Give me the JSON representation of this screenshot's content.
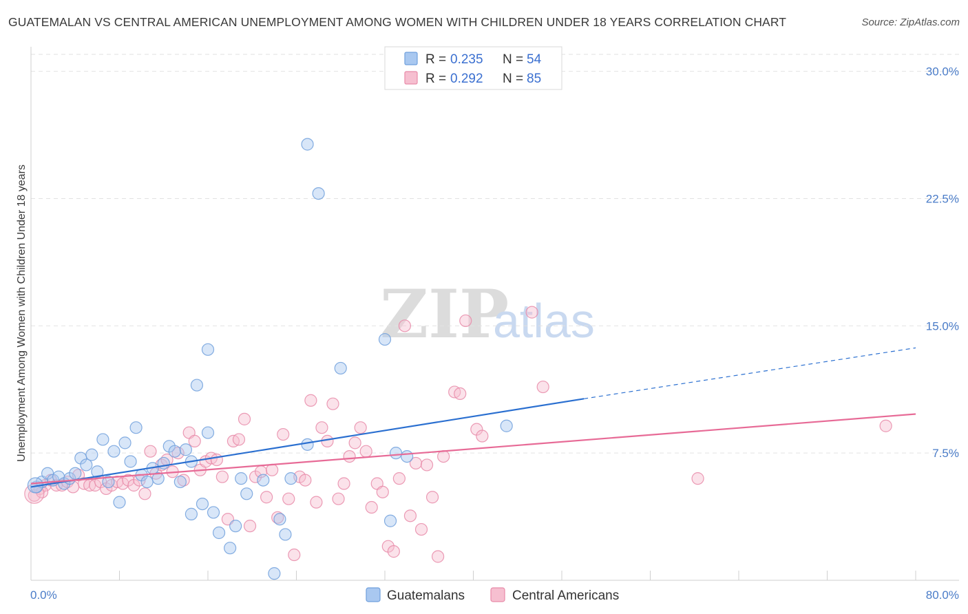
{
  "title": "GUATEMALAN VS CENTRAL AMERICAN UNEMPLOYMENT AMONG WOMEN WITH CHILDREN UNDER 18 YEARS CORRELATION CHART",
  "source": "Source: ZipAtlas.com",
  "watermark": {
    "zip": "ZIP",
    "atlas": "atlas"
  },
  "legend": {
    "r_label": "R =",
    "n_label": "N =",
    "series": [
      {
        "r": "0.235",
        "n": "54"
      },
      {
        "r": "0.292",
        "n": "85"
      }
    ]
  },
  "colors": {
    "guatemalans_fill": "#a9c8f0",
    "guatemalans_stroke": "#6f9fdc",
    "guatemalans_line": "#2a6fd0",
    "central_fill": "#f6bfd0",
    "central_stroke": "#e88aa8",
    "central_line": "#e76a96",
    "tick_text": "#4a7cc8"
  },
  "chart_data": {
    "type": "scatter",
    "xlabel": "",
    "ylabel": "Unemployment Among Women with Children Under 18 years",
    "xlim": [
      0,
      80
    ],
    "ylim": [
      0,
      31
    ],
    "x_tick_labels": [
      "0.0%",
      "80.0%"
    ],
    "y_ticks": [
      7.5,
      15.0,
      22.5,
      30.0
    ],
    "y_tick_labels": [
      "7.5%",
      "15.0%",
      "22.5%",
      "30.0%"
    ],
    "grid": true,
    "legend_position": "top-center",
    "series": [
      {
        "name": "Guatemalans",
        "trend": {
          "x": [
            0,
            50
          ],
          "y": [
            5.5,
            10.7
          ],
          "dashed_to": [
            80,
            13.7
          ]
        },
        "points": [
          [
            0.5,
            5.5
          ],
          [
            1.0,
            5.8
          ],
          [
            1.5,
            6.3
          ],
          [
            2.0,
            5.9
          ],
          [
            2.5,
            6.1
          ],
          [
            3.0,
            5.7
          ],
          [
            3.5,
            6.0
          ],
          [
            4.0,
            6.3
          ],
          [
            4.5,
            7.2
          ],
          [
            5.0,
            6.8
          ],
          [
            5.5,
            7.4
          ],
          [
            6.0,
            6.4
          ],
          [
            6.5,
            8.3
          ],
          [
            7.0,
            5.8
          ],
          [
            7.5,
            7.6
          ],
          [
            8.0,
            4.6
          ],
          [
            8.5,
            8.1
          ],
          [
            9.0,
            7.0
          ],
          [
            9.5,
            9.0
          ],
          [
            10.0,
            6.2
          ],
          [
            10.5,
            5.8
          ],
          [
            11.0,
            6.6
          ],
          [
            11.5,
            6.0
          ],
          [
            12.0,
            6.9
          ],
          [
            12.5,
            7.9
          ],
          [
            13.0,
            7.6
          ],
          [
            13.5,
            5.8
          ],
          [
            14.0,
            7.7
          ],
          [
            14.5,
            3.9
          ],
          [
            14.5,
            7.0
          ],
          [
            15.0,
            11.5
          ],
          [
            15.5,
            4.5
          ],
          [
            16.0,
            8.7
          ],
          [
            16.0,
            13.6
          ],
          [
            16.5,
            4.0
          ],
          [
            17.0,
            2.8
          ],
          [
            18.0,
            1.9
          ],
          [
            18.5,
            3.2
          ],
          [
            19.0,
            6.0
          ],
          [
            19.5,
            5.1
          ],
          [
            21.0,
            5.9
          ],
          [
            22.0,
            0.4
          ],
          [
            22.5,
            3.6
          ],
          [
            23.0,
            2.7
          ],
          [
            23.5,
            6.0
          ],
          [
            25.0,
            25.7
          ],
          [
            25.0,
            8.0
          ],
          [
            26.0,
            22.8
          ],
          [
            28.0,
            12.5
          ],
          [
            32.0,
            14.2
          ],
          [
            32.5,
            3.5
          ],
          [
            33.0,
            7.5
          ],
          [
            34.0,
            7.3
          ],
          [
            43.0,
            9.1
          ]
        ]
      },
      {
        "name": "Central Americans",
        "trend": {
          "x": [
            0,
            80
          ],
          "y": [
            5.7,
            9.8
          ]
        },
        "points": [
          [
            0.3,
            5.0
          ],
          [
            0.8,
            5.4
          ],
          [
            1.3,
            5.6
          ],
          [
            1.8,
            5.9
          ],
          [
            2.3,
            5.6
          ],
          [
            2.8,
            5.6
          ],
          [
            3.3,
            5.8
          ],
          [
            3.8,
            5.5
          ],
          [
            4.3,
            6.2
          ],
          [
            4.8,
            5.7
          ],
          [
            5.3,
            5.6
          ],
          [
            5.8,
            5.6
          ],
          [
            6.3,
            5.8
          ],
          [
            6.8,
            5.4
          ],
          [
            7.3,
            5.6
          ],
          [
            7.8,
            5.8
          ],
          [
            8.3,
            5.7
          ],
          [
            8.8,
            5.9
          ],
          [
            9.3,
            5.6
          ],
          [
            9.8,
            5.9
          ],
          [
            10.3,
            5.1
          ],
          [
            10.8,
            7.6
          ],
          [
            11.3,
            6.3
          ],
          [
            11.8,
            6.8
          ],
          [
            12.3,
            7.1
          ],
          [
            12.8,
            6.4
          ],
          [
            13.3,
            7.5
          ],
          [
            13.8,
            5.9
          ],
          [
            14.3,
            8.7
          ],
          [
            14.8,
            8.2
          ],
          [
            15.3,
            6.5
          ],
          [
            15.8,
            7.0
          ],
          [
            16.3,
            7.2
          ],
          [
            16.8,
            7.1
          ],
          [
            17.3,
            6.1
          ],
          [
            17.8,
            3.6
          ],
          [
            18.3,
            8.2
          ],
          [
            18.8,
            8.3
          ],
          [
            19.3,
            9.5
          ],
          [
            19.8,
            3.2
          ],
          [
            20.3,
            6.1
          ],
          [
            20.8,
            6.4
          ],
          [
            21.3,
            4.9
          ],
          [
            21.8,
            6.5
          ],
          [
            22.3,
            3.7
          ],
          [
            22.8,
            8.6
          ],
          [
            23.3,
            4.8
          ],
          [
            23.8,
            1.5
          ],
          [
            24.3,
            6.1
          ],
          [
            24.8,
            5.9
          ],
          [
            25.3,
            10.6
          ],
          [
            25.8,
            4.6
          ],
          [
            26.3,
            9.0
          ],
          [
            26.8,
            8.2
          ],
          [
            27.3,
            10.4
          ],
          [
            27.8,
            4.8
          ],
          [
            28.3,
            5.7
          ],
          [
            28.8,
            7.3
          ],
          [
            29.3,
            8.1
          ],
          [
            29.8,
            9.0
          ],
          [
            30.3,
            7.6
          ],
          [
            30.8,
            4.3
          ],
          [
            31.3,
            5.7
          ],
          [
            31.8,
            5.2
          ],
          [
            32.3,
            2.0
          ],
          [
            32.8,
            1.7
          ],
          [
            33.3,
            6.0
          ],
          [
            33.8,
            15.0
          ],
          [
            34.3,
            3.8
          ],
          [
            34.8,
            6.9
          ],
          [
            35.3,
            3.0
          ],
          [
            35.8,
            6.8
          ],
          [
            36.3,
            4.9
          ],
          [
            36.8,
            1.4
          ],
          [
            37.3,
            7.3
          ],
          [
            38.3,
            11.1
          ],
          [
            38.8,
            11.0
          ],
          [
            39.3,
            15.3
          ],
          [
            40.3,
            8.9
          ],
          [
            40.8,
            8.5
          ],
          [
            45.3,
            15.8
          ],
          [
            46.3,
            11.4
          ],
          [
            60.3,
            6.0
          ],
          [
            77.3,
            9.1
          ],
          [
            1.0,
            5.2
          ]
        ]
      }
    ]
  },
  "bottom_legend": [
    "Guatemalans",
    "Central Americans"
  ]
}
